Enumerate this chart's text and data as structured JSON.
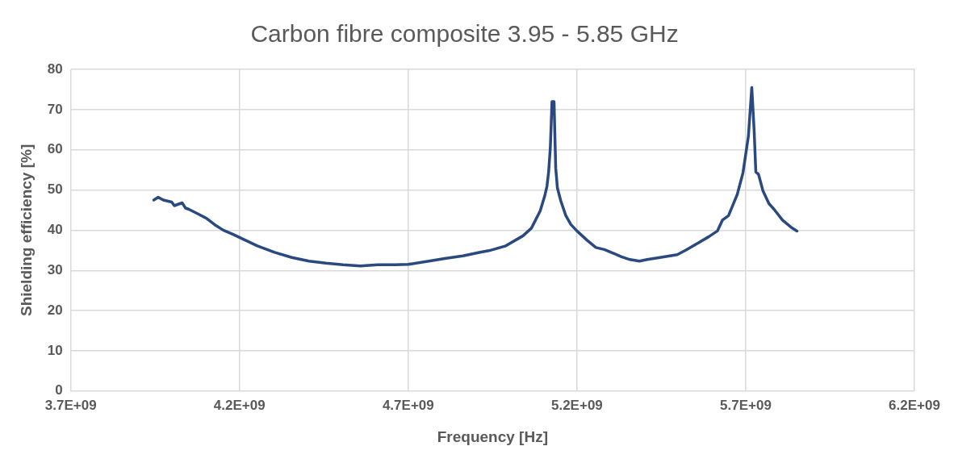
{
  "chart_data": {
    "type": "line",
    "title": "Carbon fibre composite 3.95 - 5.85 GHz",
    "xlabel": "Frequency [Hz]",
    "ylabel": "Shielding efficiency [%]",
    "xlim": [
      3700000000.0,
      6200000000.0
    ],
    "xticks": [
      {
        "value": 3700000000.0,
        "label": "3.7E+09"
      },
      {
        "value": 4200000000.0,
        "label": "4.2E+09"
      },
      {
        "value": 4700000000.0,
        "label": "4.7E+09"
      },
      {
        "value": 5200000000.0,
        "label": "5.2E+09"
      },
      {
        "value": 5700000000.0,
        "label": "5.7E+09"
      },
      {
        "value": 6200000000.0,
        "label": "6.2E+09"
      }
    ],
    "ylim": [
      0,
      80
    ],
    "yticks": [
      0,
      10,
      20,
      30,
      40,
      50,
      60,
      70,
      80
    ],
    "grid": true,
    "legend": false,
    "marker": "none",
    "line_style": "solid",
    "series": [
      {
        "color": "#2a4a7f",
        "x": [
          3946000000.0,
          3959000000.0,
          3974000000.0,
          3999000000.0,
          4007000000.0,
          4030000000.0,
          4040000000.0,
          4050000000.0,
          4076000000.0,
          4101000000.0,
          4126000000.0,
          4152000000.0,
          4177000000.0,
          4200000000.0,
          4253000000.0,
          4304000000.0,
          4355000000.0,
          4406000000.0,
          4456000000.0,
          4507000000.0,
          4558000000.0,
          4609000000.0,
          4659000000.0,
          4700000000.0,
          4761000000.0,
          4812000000.0,
          4862000000.0,
          4913000000.0,
          4939000000.0,
          4989000000.0,
          5040000000.0,
          5065000000.0,
          5091000000.0,
          5104000000.0,
          5111000000.0,
          5116000000.0,
          5121000000.0,
          5126000000.0,
          5132000000.0,
          5137000000.0,
          5142000000.0,
          5152000000.0,
          5167000000.0,
          5182000000.0,
          5200000000.0,
          5230000000.0,
          5256000000.0,
          5281000000.0,
          5307000000.0,
          5332000000.0,
          5357000000.0,
          5385000000.0,
          5408000000.0,
          5446000000.0,
          5497000000.0,
          5522000000.0,
          5555000000.0,
          5591000000.0,
          5616000000.0,
          5631000000.0,
          5649000000.0,
          5675000000.0,
          5692000000.0,
          5708000000.0,
          5718000000.0,
          5725000000.0,
          5730000000.0,
          5738000000.0,
          5751000000.0,
          5769000000.0,
          5784000000.0,
          5809000000.0,
          5835000000.0,
          5852000000.0
        ],
        "values": [
          47.5,
          48.2,
          47.5,
          47.0,
          46.1,
          46.8,
          45.5,
          45.2,
          44.1,
          43.0,
          41.4,
          40.0,
          39.1,
          38.2,
          36.1,
          34.5,
          33.2,
          32.3,
          31.8,
          31.4,
          31.1,
          31.4,
          31.4,
          31.5,
          32.3,
          33.0,
          33.6,
          34.5,
          34.9,
          36.1,
          38.6,
          40.5,
          44.8,
          48.4,
          50.9,
          54.5,
          60.5,
          72.0,
          72.0,
          55.5,
          50.5,
          47.3,
          43.6,
          41.4,
          39.8,
          37.5,
          35.7,
          35.2,
          34.3,
          33.4,
          32.7,
          32.3,
          32.7,
          33.2,
          33.9,
          35.0,
          36.6,
          38.4,
          39.8,
          42.5,
          43.6,
          48.9,
          54.3,
          63.4,
          75.5,
          64.8,
          54.5,
          53.9,
          49.8,
          46.6,
          45.2,
          42.5,
          40.7,
          39.8
        ]
      }
    ]
  }
}
